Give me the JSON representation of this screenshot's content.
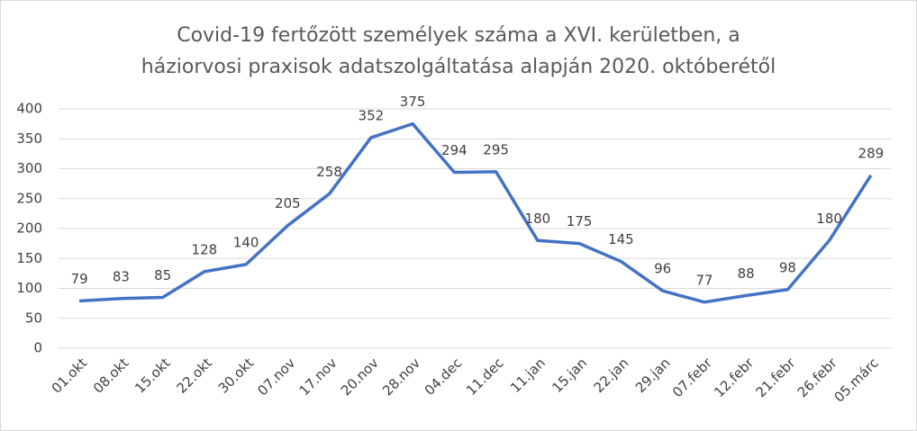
{
  "chart_data": {
    "type": "line",
    "title": [
      "Covid-19 fertőzött személyek száma a XVI. kerületben, a",
      "háziorvosi praxisok adatszolgáltatása alapján 2020. októberétől"
    ],
    "categories": [
      "01.okt",
      "08.okt",
      "15.okt",
      "22.okt",
      "30.okt",
      "07.nov",
      "17.nov",
      "20.nov",
      "28.nov",
      "04.dec",
      "11.dec",
      "11.jan",
      "15.jan",
      "22.jan",
      "29.jan",
      "07.febr",
      "12.febr",
      "21.febr",
      "26.febr",
      "05.márc"
    ],
    "values": [
      79,
      83,
      85,
      128,
      140,
      205,
      258,
      352,
      375,
      294,
      295,
      180,
      175,
      145,
      96,
      77,
      88,
      98,
      180,
      289
    ],
    "color": "#4472c4",
    "ylim": [
      0,
      400
    ],
    "yticks": [
      0,
      50,
      100,
      150,
      200,
      250,
      300,
      350,
      400
    ],
    "grid": true
  }
}
